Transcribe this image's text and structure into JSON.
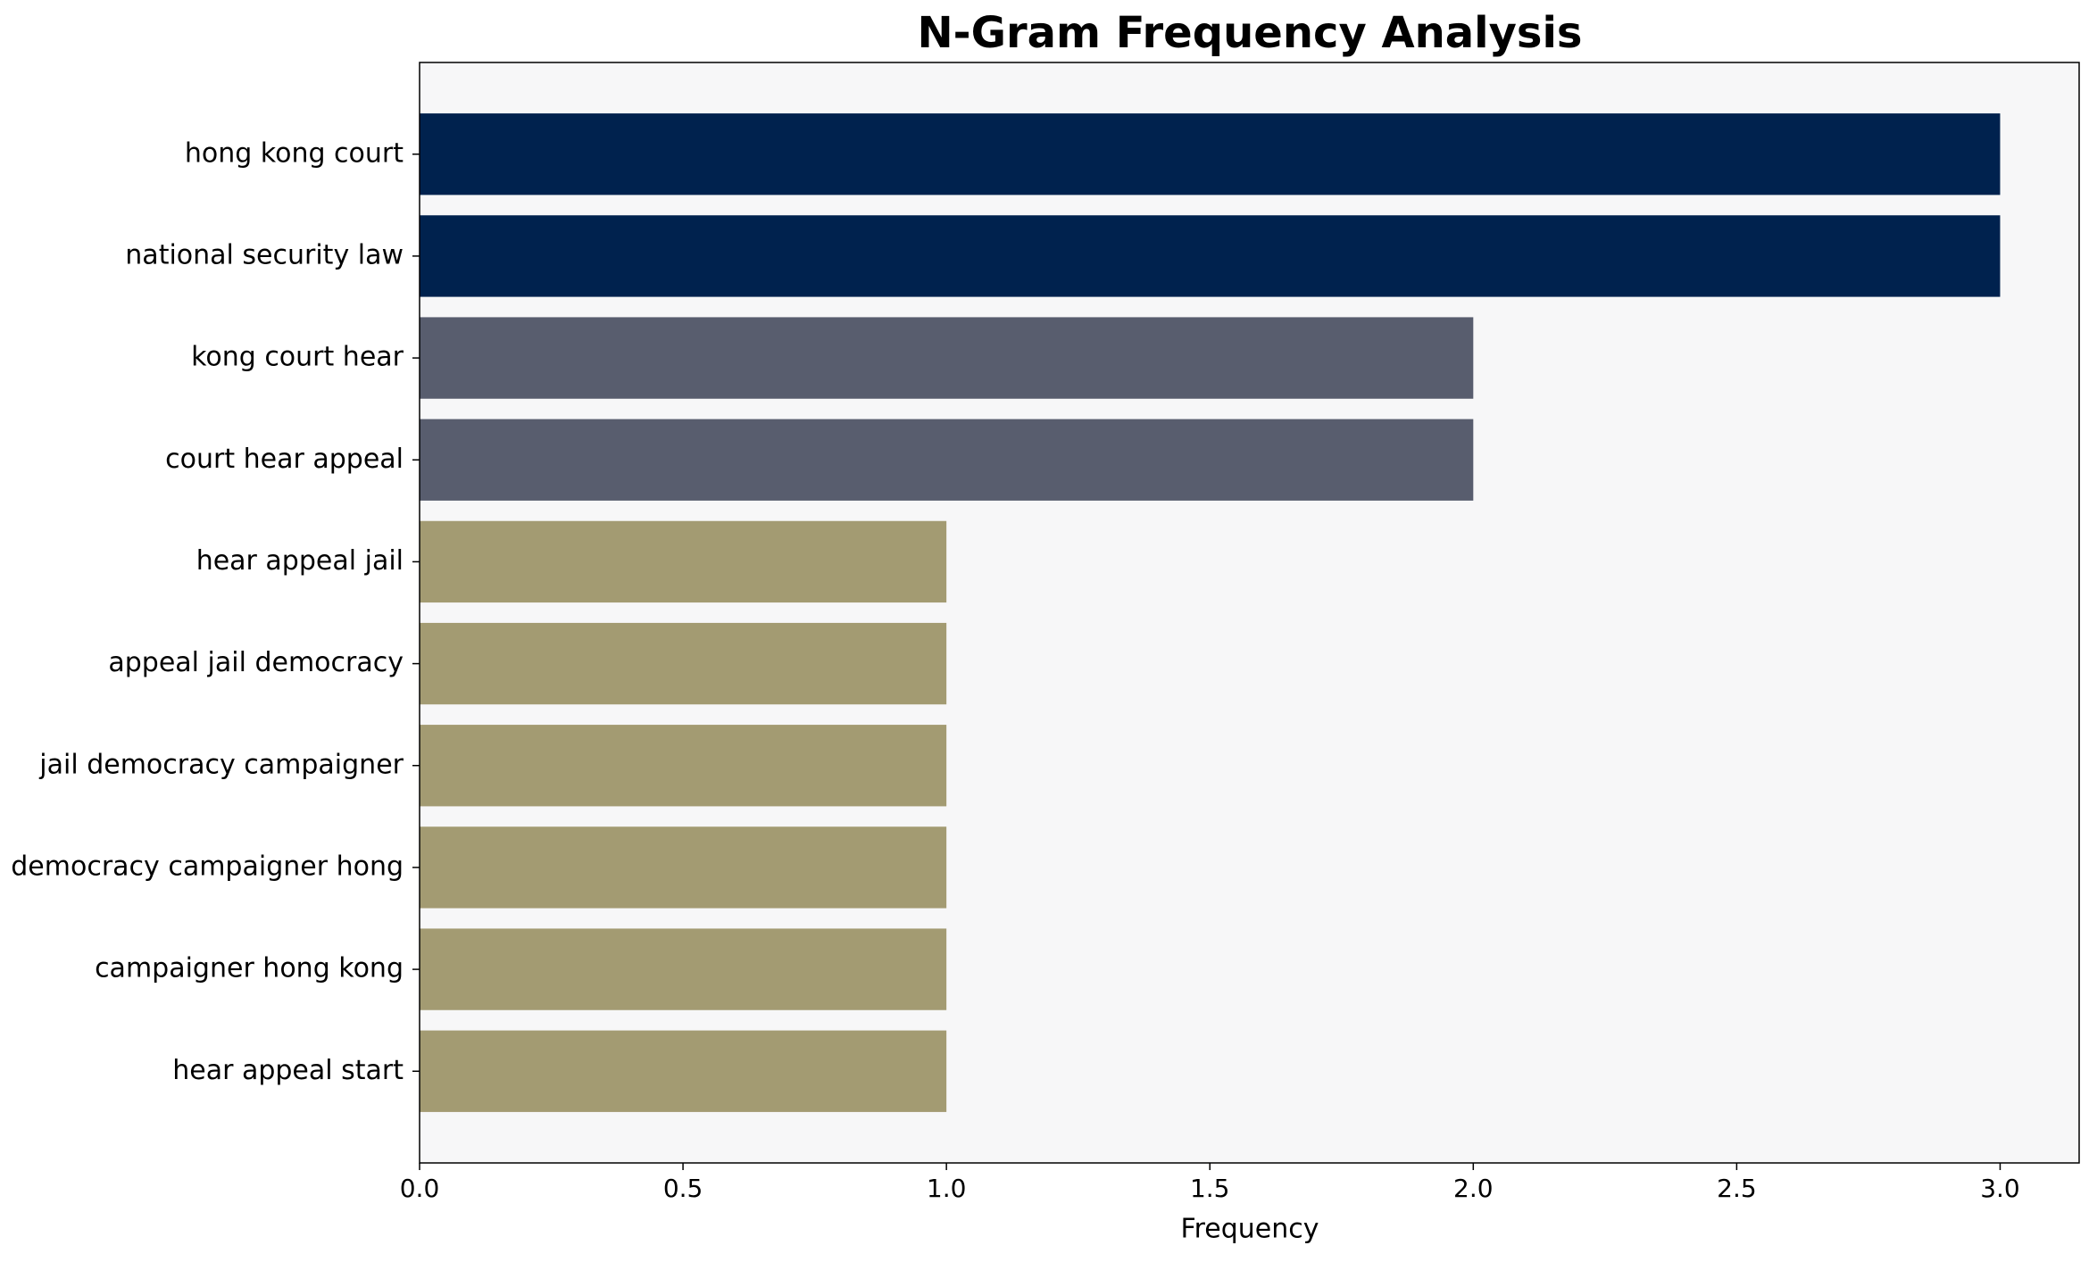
{
  "chart_data": {
    "type": "barh",
    "title": "N-Gram Frequency Analysis",
    "x_label": "Frequency",
    "categories": [
      "hong kong court",
      "national security law",
      "kong court hear",
      "court hear appeal",
      "hear appeal jail",
      "appeal jail democracy",
      "jail democracy campaigner",
      "democracy campaigner hong",
      "campaigner hong kong",
      "hear appeal start"
    ],
    "values": [
      3,
      3,
      2,
      2,
      1,
      1,
      1,
      1,
      1,
      1
    ],
    "colors": [
      "#00224e",
      "#00224e",
      "#585d6e",
      "#585d6e",
      "#a39b72",
      "#a39b72",
      "#a39b72",
      "#a39b72",
      "#a39b72",
      "#a39b72"
    ],
    "xlim": [
      0,
      3.15
    ],
    "xticks": [
      {
        "value": 0,
        "label": "0.0"
      },
      0.5,
      {
        "value": 1,
        "label": "1.0"
      },
      1.5,
      {
        "value": 2,
        "label": "2.0"
      },
      2.5,
      {
        "value": 3,
        "label": "3.0"
      }
    ],
    "background": "#f7f7f8"
  }
}
